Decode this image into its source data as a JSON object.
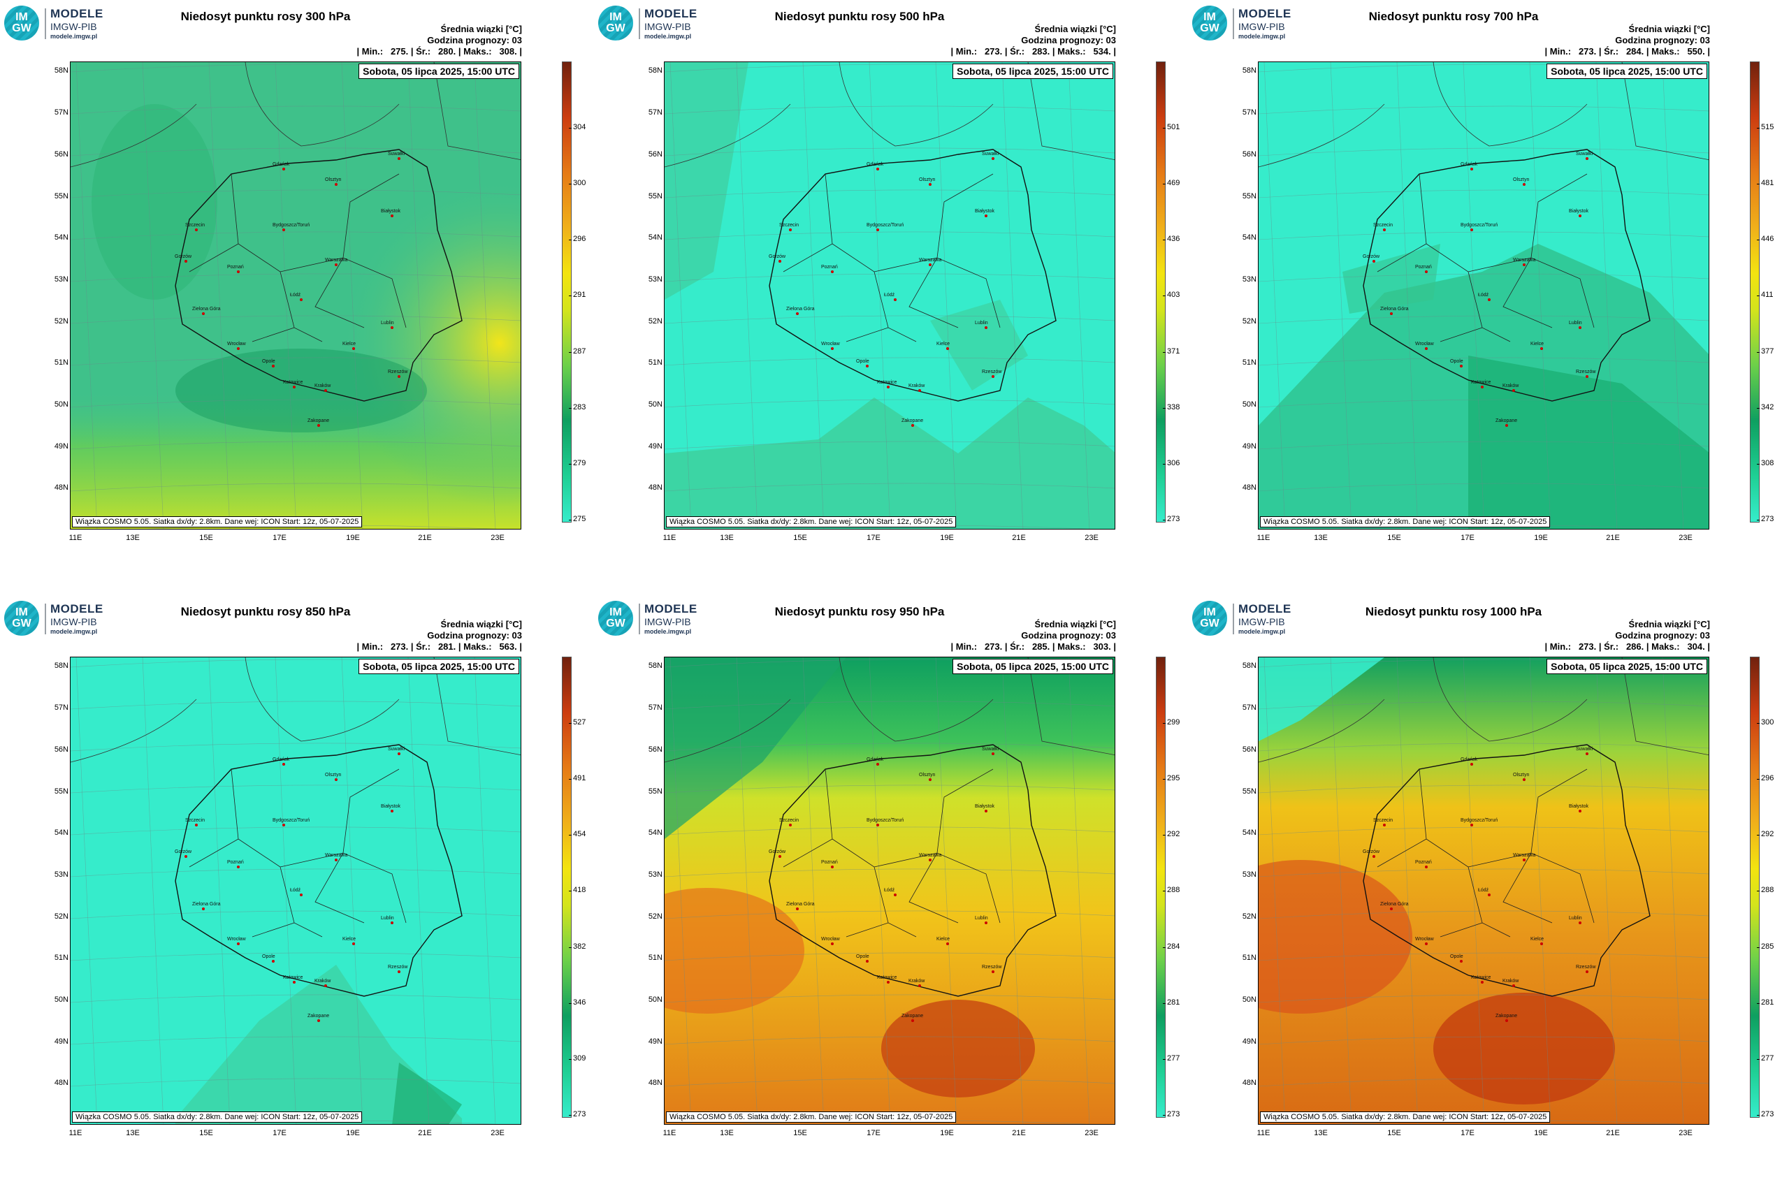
{
  "logo": {
    "text_im": "IM",
    "text_gw": "GW",
    "brand": "MODELE",
    "org": "IMGW-PIB",
    "url": "modele.imgw.pl"
  },
  "header_labels": {
    "mean": "Średnia wiązki [°C]",
    "forecast_hour": "Godzina prognozy: 03",
    "min": "| Min.:",
    "avg": "| Śr.:",
    "max": "| Maks.:"
  },
  "date_label": "Sobota, 05 lipca 2025, 15:00 UTC",
  "footer": "Wiązka COSMO 5.05. Siatka dx/dy: 2.8km. Dane wej: ICON Start: 12z, 05-07-2025",
  "axis": {
    "lat_labels": [
      "58N",
      "57N",
      "56N",
      "55N",
      "54N",
      "53N",
      "52N",
      "51N",
      "50N",
      "49N",
      "48N"
    ],
    "lon_labels": [
      "11E",
      "13E",
      "15E",
      "17E",
      "19E",
      "21E",
      "23E"
    ]
  },
  "cities": [
    "Gdańsk",
    "Suwałki",
    "Olsztyn",
    "Szczecin",
    "Bydgoszcz/Toruń",
    "Białystok",
    "Gorzów",
    "Poznań",
    "Warszawa",
    "Zielona Góra",
    "Łódź",
    "Lublin",
    "Wrocław",
    "Kielce",
    "Opole",
    "Rzeszów",
    "Katowice",
    "Kraków",
    "Zakopane"
  ],
  "panels": [
    {
      "title": "Niedosyt punktu rosy 300 hPa",
      "min": "275.",
      "avg": "280.",
      "max": "308.",
      "legend": [
        "304",
        "300",
        "296",
        "291",
        "287",
        "283",
        "279",
        "275"
      ],
      "base_color": "#3fc18a"
    },
    {
      "title": "Niedosyt punktu rosy 500 hPa",
      "min": "273.",
      "avg": "283.",
      "max": "534.",
      "legend": [
        "501",
        "469",
        "436",
        "403",
        "371",
        "338",
        "306",
        "273"
      ],
      "base_color": "#36eccb"
    },
    {
      "title": "Niedosyt punktu rosy 700 hPa",
      "min": "273.",
      "avg": "284.",
      "max": "550.",
      "legend": [
        "515",
        "481",
        "446",
        "411",
        "377",
        "342",
        "308",
        "273"
      ],
      "base_color": "#36eccb"
    },
    {
      "title": "Niedosyt punktu rosy 850 hPa",
      "min": "273.",
      "avg": "281.",
      "max": "563.",
      "legend": [
        "527",
        "491",
        "454",
        "418",
        "382",
        "346",
        "309",
        "273"
      ],
      "base_color": "#36eccb"
    },
    {
      "title": "Niedosyt punktu rosy 950 hPa",
      "min": "273.",
      "avg": "285.",
      "max": "303.",
      "legend": [
        "299",
        "295",
        "292",
        "288",
        "284",
        "281",
        "277",
        "273"
      ],
      "base_color": "#e9c41c"
    },
    {
      "title": "Niedosyt punktu rosy 1000 hPa",
      "min": "273.",
      "avg": "286.",
      "max": "304.",
      "legend": [
        "300",
        "296",
        "292",
        "288",
        "285",
        "281",
        "277",
        "273"
      ],
      "base_color": "#e39a18"
    }
  ]
}
